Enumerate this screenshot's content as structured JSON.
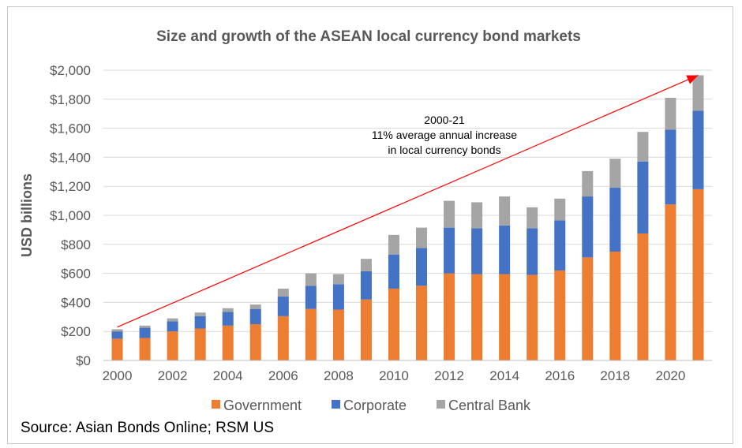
{
  "source_note": "Source: Asian Bonds Online; RSM US",
  "colors": {
    "Government": "#ed7d31",
    "Corporate": "#4472c4",
    "Central Bank": "#a5a5a5",
    "arrow": "#ff0000",
    "grid": "#d9d9d9"
  },
  "chart_data": {
    "type": "bar",
    "stacked": true,
    "title": "Size and growth of the ASEAN local currency bond markets",
    "xlabel": "",
    "ylabel": "USD billions",
    "ylim": [
      0,
      2000
    ],
    "ytick_labels": [
      "$0",
      "$200",
      "$400",
      "$600",
      "$800",
      "$1,000",
      "$1,200",
      "$1,400",
      "$1,600",
      "$1,800",
      "$2,000"
    ],
    "xtick_labels": [
      "2000",
      "2002",
      "2004",
      "2006",
      "2008",
      "2010",
      "2012",
      "2014",
      "2016",
      "2018",
      "2020"
    ],
    "categories": [
      "2000",
      "2001",
      "2002",
      "2003",
      "2004",
      "2005",
      "2006",
      "2007",
      "2008",
      "2009",
      "2010",
      "2011",
      "2012",
      "2013",
      "2014",
      "2015",
      "2016",
      "2017",
      "2018",
      "2019",
      "2020",
      "2021"
    ],
    "grid": true,
    "legend_position": "bottom",
    "series": [
      {
        "name": "Government",
        "values": [
          150,
          155,
          200,
          220,
          240,
          250,
          305,
          355,
          350,
          420,
          495,
          515,
          600,
          595,
          595,
          590,
          620,
          710,
          750,
          875,
          1075,
          1180
        ]
      },
      {
        "name": "Corporate",
        "values": [
          50,
          70,
          70,
          85,
          95,
          105,
          135,
          160,
          175,
          195,
          235,
          260,
          315,
          315,
          335,
          320,
          345,
          420,
          440,
          495,
          515,
          540
        ]
      },
      {
        "name": "Central Bank",
        "values": [
          15,
          15,
          20,
          25,
          25,
          30,
          55,
          85,
          70,
          85,
          135,
          140,
          185,
          180,
          200,
          145,
          150,
          175,
          200,
          205,
          220,
          245
        ]
      }
    ],
    "annotation": {
      "lines": [
        "2000-21",
        "11% average annual increase",
        "in local currency bonds"
      ],
      "from": [
        "2000",
        230
      ],
      "to": [
        "2021",
        1965
      ]
    }
  }
}
